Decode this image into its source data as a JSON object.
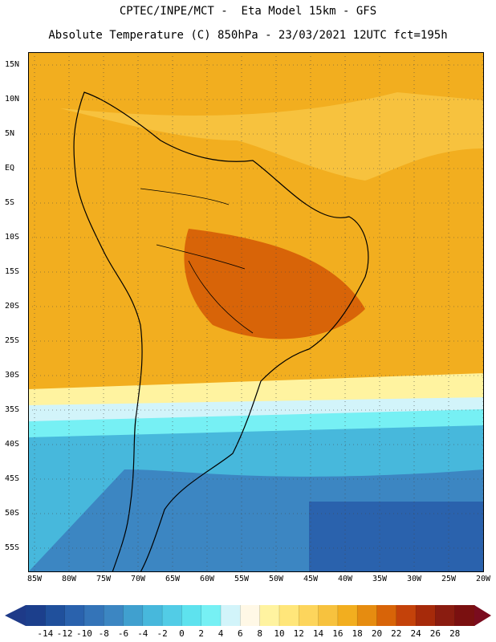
{
  "header": {
    "line1": "CPTEC/INPE/MCT -  Eta Model 15km - GFS",
    "line2": "Absolute Temperature (C) 850hPa - 23/03/2021 12UTC fct=195h"
  },
  "axes": {
    "lat_labels": [
      "15N",
      "10N",
      "5N",
      "EQ",
      "5S",
      "10S",
      "15S",
      "20S",
      "25S",
      "30S",
      "35S",
      "40S",
      "45S",
      "50S",
      "55S"
    ],
    "lon_labels": [
      "85W",
      "80W",
      "75W",
      "70W",
      "65W",
      "60W",
      "55W",
      "50W",
      "45W",
      "40W",
      "35W",
      "30W",
      "25W",
      "20W"
    ]
  },
  "colorbar": {
    "labels": [
      "-14",
      "-12",
      "-10",
      "-8",
      "-6",
      "-4",
      "-2",
      "0",
      "2",
      "4",
      "6",
      "8",
      "10",
      "12",
      "14",
      "16",
      "18",
      "20",
      "22",
      "24",
      "26",
      "28"
    ],
    "colors": [
      "#1c3f8c",
      "#20509c",
      "#2a62ad",
      "#3474b8",
      "#3c86c2",
      "#40a0cf",
      "#47b8dc",
      "#52cce6",
      "#5ee2ee",
      "#76f0f4",
      "#d2f4fa",
      "#fff8e6",
      "#fff3a0",
      "#ffe67a",
      "#fdd55c",
      "#f7c23e",
      "#f2ae1f",
      "#e68c10",
      "#d86408",
      "#c4420a",
      "#a62a0a",
      "#8a1c10",
      "#7a1010"
    ],
    "end_left_color": "#1e3a88",
    "end_right_color": "#7a0c1e"
  }
}
